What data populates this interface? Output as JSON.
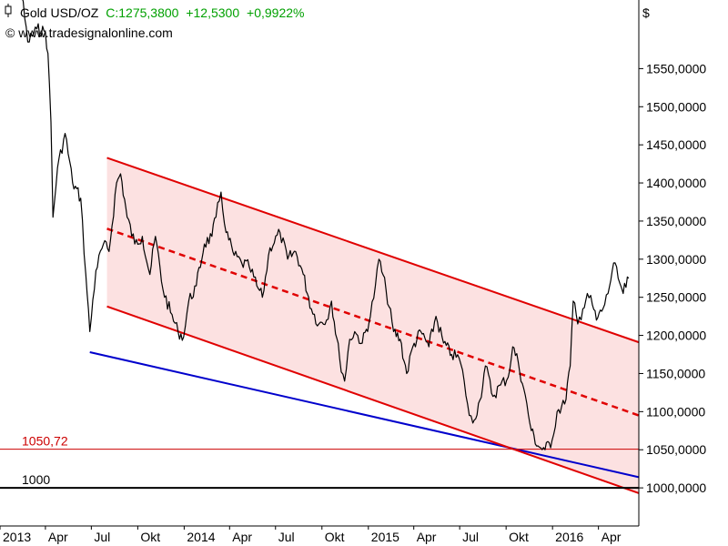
{
  "header": {
    "symbol_icon": "candlestick-icon",
    "instrument": "Gold USD/OZ",
    "close_label": "C:1275,3800",
    "change_abs": "+12,5300",
    "change_pct": "+0,9922%",
    "copyright": "© www.tradesignalonline.com",
    "currency": "$"
  },
  "colors": {
    "price": "#000000",
    "channel": "#e00000",
    "channel_fill": "#fbdcdc",
    "support": "#0000cc",
    "up": "#00a000",
    "level": "#cc0000"
  },
  "chart_data": {
    "type": "line",
    "title": "Gold USD/OZ",
    "ylabel": "$",
    "ylim": [
      950,
      1640
    ],
    "xlim": [
      "2013-01-01",
      "2016-06-20"
    ],
    "grid": false,
    "y_ticks": [
      "1550,0000",
      "1500,0000",
      "1450,0000",
      "1400,0000",
      "1350,0000",
      "1300,0000",
      "1250,0000",
      "1200,0000",
      "1150,0000",
      "1100,0000",
      "1050,0000",
      "1000,0000"
    ],
    "y_tick_values": [
      1550,
      1500,
      1450,
      1400,
      1350,
      1300,
      1250,
      1200,
      1150,
      1100,
      1050,
      1000
    ],
    "x_ticks": [
      "2013",
      "Apr",
      "Jul",
      "Okt",
      "2014",
      "Apr",
      "Jul",
      "Okt",
      "2015",
      "Apr",
      "Jul",
      "Okt",
      "2016",
      "Apr"
    ],
    "x_tick_dates": [
      "2013-01-01",
      "2013-04-01",
      "2013-07-01",
      "2013-10-01",
      "2014-01-01",
      "2014-04-01",
      "2014-07-01",
      "2014-10-01",
      "2015-01-01",
      "2015-04-01",
      "2015-07-01",
      "2015-10-01",
      "2016-01-01",
      "2016-04-01"
    ],
    "series": [
      {
        "x": [
          "2013-01-01",
          "2013-01-20",
          "2013-02-10",
          "2013-02-25",
          "2013-03-15",
          "2013-04-01",
          "2013-04-06",
          "2013-04-12",
          "2013-04-16",
          "2013-04-25",
          "2013-05-10",
          "2013-05-25",
          "2013-06-10",
          "2013-06-20",
          "2013-06-28",
          "2013-07-10",
          "2013-07-25",
          "2013-08-05",
          "2013-08-20",
          "2013-08-28",
          "2013-09-10",
          "2013-09-25",
          "2013-10-10",
          "2013-10-25",
          "2013-11-05",
          "2013-11-20",
          "2013-12-05",
          "2013-12-20",
          "2013-12-31",
          "2014-01-10",
          "2014-01-25",
          "2014-02-10",
          "2014-02-25",
          "2014-03-05",
          "2014-03-15",
          "2014-03-25",
          "2014-04-10",
          "2014-04-25",
          "2014-05-10",
          "2014-05-25",
          "2014-06-05",
          "2014-06-20",
          "2014-07-10",
          "2014-07-25",
          "2014-08-10",
          "2014-08-25",
          "2014-09-10",
          "2014-09-25",
          "2014-10-10",
          "2014-10-20",
          "2014-11-05",
          "2014-11-15",
          "2014-11-25",
          "2014-12-05",
          "2014-12-20",
          "2015-01-05",
          "2015-01-15",
          "2015-01-22",
          "2015-02-05",
          "2015-02-20",
          "2015-03-05",
          "2015-03-18",
          "2015-03-30",
          "2015-04-15",
          "2015-05-01",
          "2015-05-15",
          "2015-05-30",
          "2015-06-15",
          "2015-06-30",
          "2015-07-10",
          "2015-07-20",
          "2015-07-27",
          "2015-08-10",
          "2015-08-21",
          "2015-09-05",
          "2015-09-20",
          "2015-10-05",
          "2015-10-14",
          "2015-10-25",
          "2015-11-05",
          "2015-11-20",
          "2015-12-03",
          "2015-12-17",
          "2015-12-31",
          "2016-01-10",
          "2016-01-25",
          "2016-02-05",
          "2016-02-11",
          "2016-02-20",
          "2016-03-01",
          "2016-03-10",
          "2016-03-20",
          "2016-03-28",
          "2016-04-10",
          "2016-04-20",
          "2016-05-01",
          "2016-05-10",
          "2016-05-20",
          "2016-05-31"
        ],
        "values": [
          1672,
          1685,
          1662,
          1585,
          1602,
          1598,
          1570,
          1480,
          1355,
          1420,
          1465,
          1400,
          1380,
          1280,
          1205,
          1285,
          1320,
          1310,
          1400,
          1412,
          1355,
          1320,
          1330,
          1280,
          1330,
          1260,
          1230,
          1205,
          1198,
          1245,
          1265,
          1320,
          1330,
          1355,
          1388,
          1335,
          1305,
          1295,
          1290,
          1265,
          1250,
          1315,
          1335,
          1300,
          1310,
          1280,
          1235,
          1215,
          1220,
          1245,
          1170,
          1140,
          1195,
          1205,
          1190,
          1225,
          1265,
          1300,
          1260,
          1205,
          1195,
          1150,
          1185,
          1205,
          1185,
          1225,
          1190,
          1175,
          1170,
          1140,
          1095,
          1085,
          1115,
          1160,
          1120,
          1135,
          1145,
          1185,
          1165,
          1130,
          1075,
          1055,
          1050,
          1062,
          1100,
          1110,
          1160,
          1245,
          1215,
          1235,
          1255,
          1240,
          1220,
          1235,
          1255,
          1295,
          1275,
          1255,
          1275
        ]
      }
    ],
    "lines": {
      "channel_upper": {
        "x": [
          "2013-08-01",
          "2016-06-20"
        ],
        "y": [
          1433,
          1191
        ]
      },
      "channel_mid": {
        "x": [
          "2013-08-01",
          "2016-06-20"
        ],
        "y": [
          1340,
          1095
        ]
      },
      "channel_lower": {
        "x": [
          "2013-08-01",
          "2016-06-20"
        ],
        "y": [
          1238,
          993
        ]
      },
      "support": {
        "x": [
          "2013-06-28",
          "2016-06-20"
        ],
        "y": [
          1178,
          1014
        ]
      }
    },
    "levels": [
      {
        "label": "1050,72",
        "value": 1050.72
      },
      {
        "label": "1000",
        "value": 1000
      }
    ]
  }
}
